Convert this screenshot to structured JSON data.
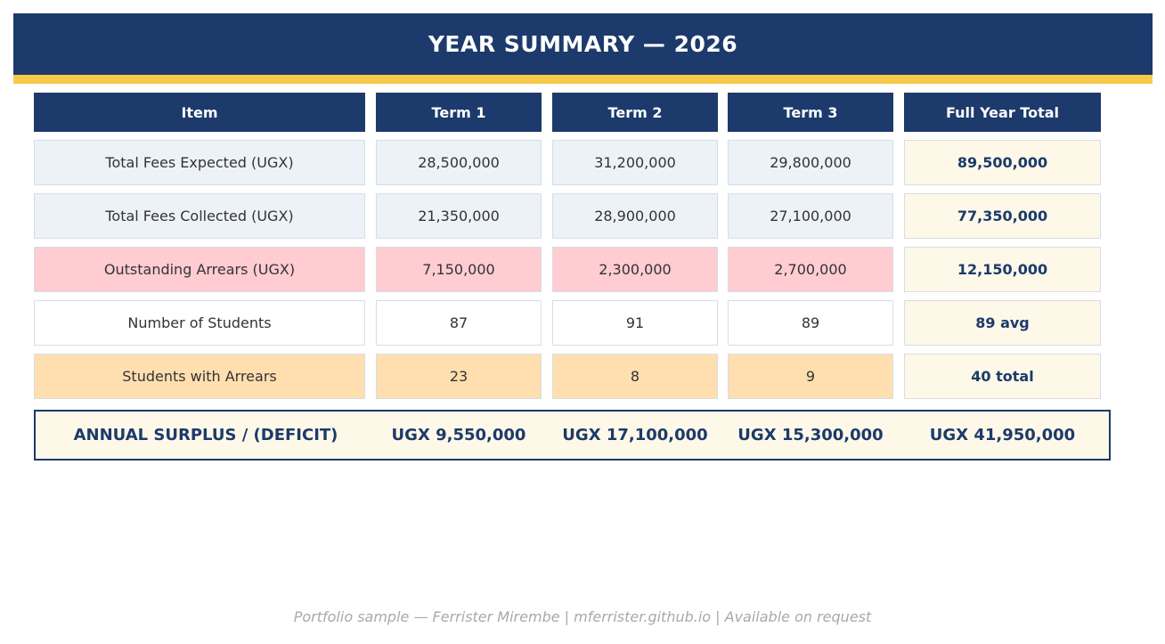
{
  "banner": {
    "title": "YEAR SUMMARY — 2026"
  },
  "colors": {
    "navy": "#1c3a6b",
    "gold": "#f7c948",
    "arrears": "#ffccd2",
    "students_arrears": "#ffdfb0",
    "total": "#fdf8e8"
  },
  "table": {
    "headers": [
      "Item",
      "Term 1",
      "Term 2",
      "Term 3",
      "Full Year Total"
    ],
    "rows": [
      [
        "Total Fees Expected (UGX)",
        "28,500,000",
        "31,200,000",
        "29,800,000",
        "89,500,000"
      ],
      [
        "Total Fees Collected (UGX)",
        "21,350,000",
        "28,900,000",
        "27,100,000",
        "77,350,000"
      ],
      [
        "Outstanding Arrears (UGX)",
        "7,150,000",
        "2,300,000",
        "2,700,000",
        "12,150,000"
      ],
      [
        "Number of Students",
        "87",
        "91",
        "89",
        "89 avg"
      ],
      [
        "Students with Arrears",
        "23",
        "8",
        "9",
        "40 total"
      ]
    ]
  },
  "summary": {
    "label": "ANNUAL SURPLUS / (DEFICIT)",
    "term1": "UGX 9,550,000",
    "term2": "UGX 17,100,000",
    "term3": "UGX 15,300,000",
    "total": "UGX 41,950,000"
  },
  "footer": {
    "text": "Portfolio sample — Ferrister Mirembe | mferrister.github.io | Available on request"
  }
}
